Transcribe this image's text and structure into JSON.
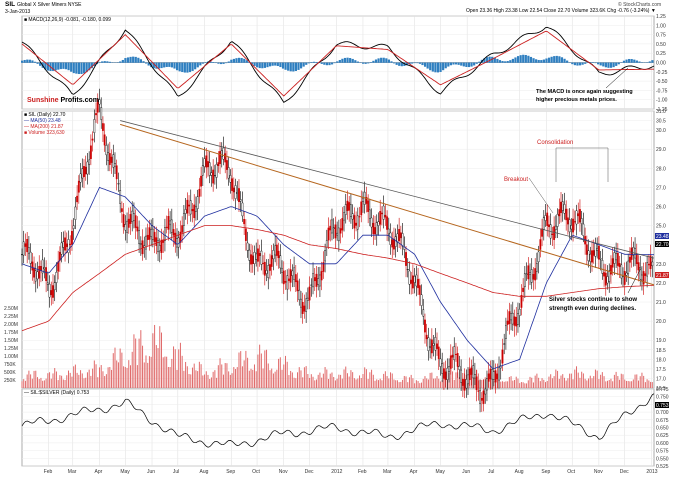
{
  "header": {
    "symbol": "SIL",
    "description": "Global X Silver Miners  NYSE",
    "date": "3-Jan-2013",
    "quote": "Open 23.36  High 23.38  Low 22.54  Close 22.70  Volume 323.6K  Chg -0.76 (-3.24%) ▼",
    "copyright": "© StockCharts.com"
  },
  "watermark": {
    "part1": "Sunshine",
    "part2": " Profits.com"
  },
  "panels": {
    "macd_label": "■ MACD(12,26,9) -0.081, -0.180, 0.099",
    "price_labels": [
      "■ SIL (Daily) 22.70",
      "— MA(50) 23.48",
      "— MA(200) 21.87",
      "■ Volume 323,630"
    ],
    "ratio_label": "— SIL:$SILVER (Daily) 0.753"
  },
  "annotations": {
    "macd": [
      "The MACD is once again suggesting",
      "higher precious metals prices."
    ],
    "consolidation": "Consolidation",
    "breakout": "Breakout",
    "silver": [
      "Silver stocks continue to show",
      "strength even during declines."
    ]
  },
  "axes": {
    "months": [
      "Feb",
      "Mar",
      "Apr",
      "May",
      "Jun",
      "Jul",
      "Aug",
      "Sep",
      "Oct",
      "Nov",
      "Dec",
      "2012",
      "Feb",
      "Mar",
      "Apr",
      "May",
      "Jun",
      "Jul",
      "Aug",
      "Sep",
      "Oct",
      "Nov",
      "Dec",
      "2013"
    ],
    "macd_ticks": [
      "1.25",
      "1.00",
      "0.75",
      "0.50",
      "0.25",
      "0.00",
      "-0.25",
      "-0.50",
      "-0.75",
      "-1.00",
      "-1.25"
    ],
    "price_ticks": [
      "31.0",
      "30.5",
      "30.0",
      "29.0",
      "28.0",
      "27.0",
      "26.0",
      "25.0",
      "24.0",
      "23.0",
      "22.0",
      "21.0",
      "20.0",
      "19.0",
      "18.5",
      "18.0",
      "17.5",
      "17.0",
      "16.5"
    ],
    "volume_ticks": [
      "2.50M",
      "2.25M",
      "2.00M",
      "1.75M",
      "1.50M",
      "1.25M",
      "1.00M",
      "750K",
      "500K",
      "250K"
    ],
    "ratio_ticks": [
      "0.775",
      "0.750",
      "0.725",
      "0.700",
      "0.675",
      "0.650",
      "0.625",
      "0.600",
      "0.575",
      "0.550",
      "0.525"
    ],
    "price_tags": [
      "23.48",
      "22.70",
      "21.87"
    ],
    "ratio_tag": "0.753"
  },
  "colors": {
    "up_candle": "#000000",
    "down_candle": "#cc0000",
    "ma50": "#1f2f9f",
    "ma200": "#cc2020",
    "volume": "#e06a6a",
    "macd_hist": "#2f7fc0",
    "macd_line": "#000000",
    "signal_line": "#cc2020",
    "trend_black": "#555555",
    "trend_brown": "#b5651d",
    "annotation_red": "#cc2020"
  },
  "chart_data": [
    {
      "type": "line",
      "title": "MACD(12,26,9)",
      "x": [
        "2011-01",
        "2011-03",
        "2011-05",
        "2011-07",
        "2011-09",
        "2011-11",
        "2012-01",
        "2012-03",
        "2012-05",
        "2012-07",
        "2012-09",
        "2012-11",
        "2013-01"
      ],
      "series": [
        {
          "name": "MACD",
          "values": [
            0.55,
            -0.9,
            0.9,
            -0.95,
            0.6,
            -1.1,
            0.5,
            0.4,
            -0.8,
            0.2,
            1.0,
            -0.3,
            -0.08
          ]
        },
        {
          "name": "Signal",
          "values": [
            0.5,
            -0.6,
            0.75,
            -0.7,
            0.5,
            -0.9,
            0.45,
            0.35,
            -0.6,
            0.1,
            0.85,
            -0.2,
            -0.18
          ]
        }
      ],
      "ylim": [
        -1.25,
        1.25
      ]
    },
    {
      "type": "line",
      "title": "SIL (Daily) 22.70",
      "x": [
        "2011-01",
        "2011-02",
        "2011-03",
        "2011-04",
        "2011-05",
        "2011-06",
        "2011-07",
        "2011-08",
        "2011-09",
        "2011-10",
        "2011-11",
        "2011-12",
        "2012-01",
        "2012-02",
        "2012-03",
        "2012-04",
        "2012-05",
        "2012-06",
        "2012-07",
        "2012-08",
        "2012-09",
        "2012-10",
        "2012-11",
        "2012-12",
        "2013-01"
      ],
      "series": [
        {
          "name": "SIL",
          "values": [
            23.5,
            21.5,
            25.5,
            30.5,
            26.0,
            23.5,
            25.0,
            27.5,
            28.0,
            23.0,
            22.5,
            21.5,
            24.5,
            26.5,
            24.5,
            22.5,
            17.5,
            17.0,
            17.0,
            20.5,
            25.5,
            25.0,
            23.5,
            22.5,
            22.7
          ]
        },
        {
          "name": "MA(50)",
          "values": [
            23.0,
            22.5,
            24.0,
            27.0,
            26.5,
            25.0,
            24.0,
            25.5,
            26.0,
            25.5,
            24.0,
            23.0,
            23.0,
            24.5,
            24.5,
            23.5,
            21.0,
            19.0,
            17.5,
            18.0,
            22.0,
            24.5,
            24.0,
            23.5,
            23.48
          ]
        },
        {
          "name": "MA(200)",
          "values": [
            19.5,
            20.0,
            21.5,
            22.5,
            23.5,
            24.0,
            24.5,
            25.0,
            25.0,
            24.8,
            24.5,
            24.0,
            23.8,
            23.5,
            23.3,
            23.0,
            22.5,
            22.0,
            21.5,
            21.3,
            21.3,
            21.5,
            21.7,
            21.8,
            21.87
          ]
        }
      ],
      "ylim": [
        16.5,
        31.0
      ]
    },
    {
      "type": "bar",
      "title": "Volume 323,630",
      "x": [
        "2011-02",
        "2011-04",
        "2011-06",
        "2011-08",
        "2011-10",
        "2011-12",
        "2012-02",
        "2012-04",
        "2012-06",
        "2012-08",
        "2012-10",
        "2012-12"
      ],
      "values": [
        600000,
        900000,
        2300000,
        700000,
        1500000,
        650000,
        700000,
        400000,
        750000,
        350000,
        700000,
        500000
      ],
      "ylim": [
        0,
        2500000
      ]
    },
    {
      "type": "line",
      "title": "SIL:$SILVER (Daily) 0.753",
      "x": [
        "2011-01",
        "2011-03",
        "2011-05",
        "2011-07",
        "2011-09",
        "2011-11",
        "2012-01",
        "2012-03",
        "2012-05",
        "2012-07",
        "2012-09",
        "2012-11",
        "2013-01"
      ],
      "series": [
        {
          "name": "SIL:$SILVER",
          "values": [
            0.655,
            0.69,
            0.73,
            0.62,
            0.59,
            0.63,
            0.65,
            0.62,
            0.665,
            0.64,
            0.7,
            0.62,
            0.753
          ]
        }
      ],
      "ylim": [
        0.525,
        0.775
      ]
    }
  ]
}
